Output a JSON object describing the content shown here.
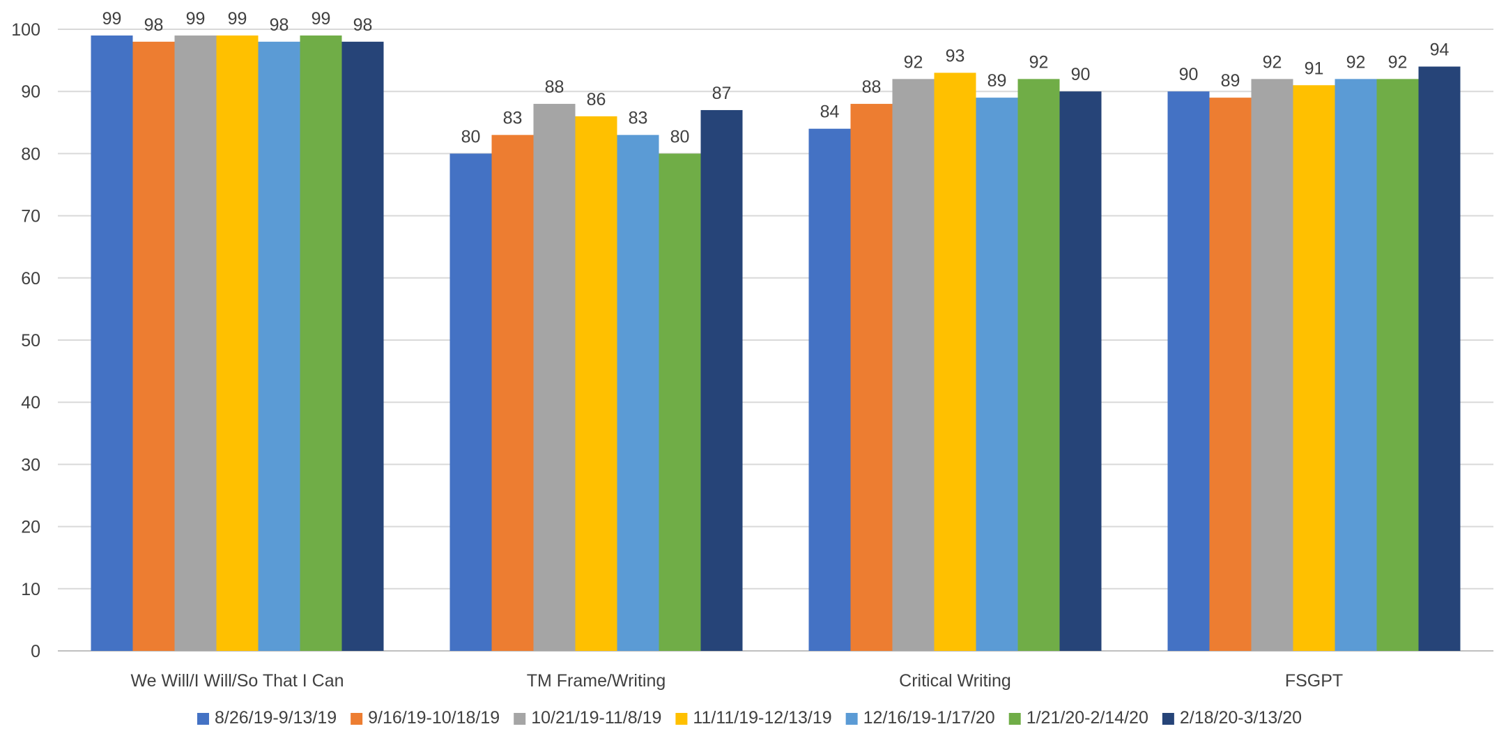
{
  "chart_data": {
    "type": "bar",
    "title": "",
    "xlabel": "",
    "ylabel": "",
    "ylim": [
      0,
      100
    ],
    "yticks": [
      0,
      10,
      20,
      30,
      40,
      50,
      60,
      70,
      80,
      90,
      100
    ],
    "grid": true,
    "legend_position": "bottom",
    "categories": [
      "We Will/I Will/So That I Can",
      "TM Frame/Writing",
      "Critical Writing",
      "FSGPT"
    ],
    "series": [
      {
        "name": "8/26/19-9/13/19",
        "color": "#4472C4",
        "values": [
          99,
          80,
          84,
          90
        ]
      },
      {
        "name": "9/16/19-10/18/19",
        "color": "#ED7D31",
        "values": [
          98,
          83,
          88,
          89
        ]
      },
      {
        "name": "10/21/19-11/8/19",
        "color": "#A5A5A5",
        "values": [
          99,
          88,
          92,
          92
        ]
      },
      {
        "name": "11/11/19-12/13/19",
        "color": "#FFC000",
        "values": [
          99,
          86,
          93,
          91
        ]
      },
      {
        "name": "12/16/19-1/17/20",
        "color": "#5B9BD5",
        "values": [
          98,
          83,
          89,
          92
        ]
      },
      {
        "name": "1/21/20-2/14/20",
        "color": "#70AD47",
        "values": [
          99,
          80,
          92,
          92
        ]
      },
      {
        "name": "2/18/20-3/13/20",
        "color": "#264478",
        "values": [
          98,
          87,
          90,
          94
        ]
      }
    ]
  }
}
